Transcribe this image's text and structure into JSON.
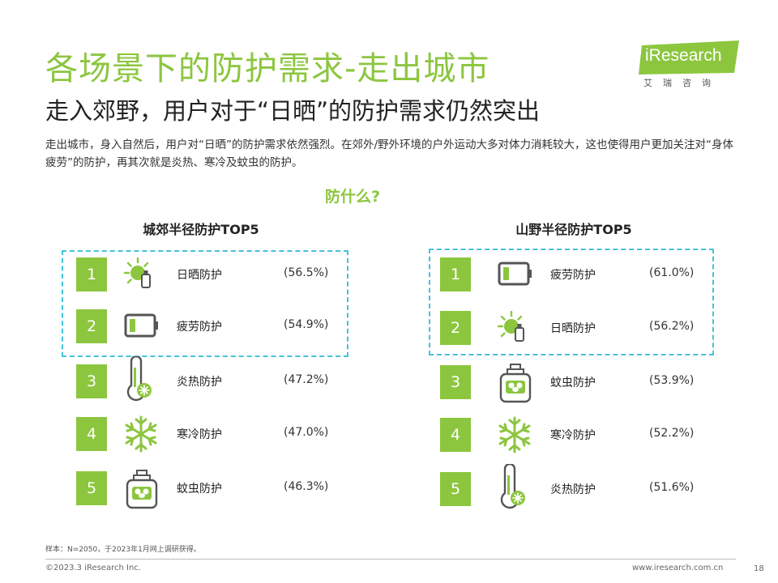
{
  "header": {
    "title": "各场景下的防护需求-走出城市",
    "subtitle": "走入郊野，用户对于“日晒”的防护需求仍然突出",
    "description": "走出城市，身入自然后，用户对“日晒”的防护需求依然强烈。在郊外/野外环境的户外运动大多对体力消耗较大，这也使得用户更加关注对“身体疲劳”的防护，再其次就是炎热、寒冷及蚊虫的防护。"
  },
  "logo": {
    "text": "iResearch",
    "cn": "艾瑞咨询",
    "color": "#8cc63f"
  },
  "question": "防什么?",
  "accent_color": "#8cc63f",
  "highlight_color": "#45c3d8",
  "left_panel": {
    "title": "城郊半径防护TOP5",
    "items": [
      {
        "rank": "1",
        "icon": "sun-bottle-icon",
        "label": "日晒防护",
        "value": "(56.5%)"
      },
      {
        "rank": "2",
        "icon": "battery-low-icon",
        "label": "疲劳防护",
        "value": "(54.9%)"
      },
      {
        "rank": "3",
        "icon": "thermometer-icon",
        "label": "炎热防护",
        "value": "(47.2%)"
      },
      {
        "rank": "4",
        "icon": "snowflake-icon",
        "label": "寒冷防护",
        "value": "(47.0%)"
      },
      {
        "rank": "5",
        "icon": "bug-spray-icon",
        "label": "蚊虫防护",
        "value": "(46.3%)"
      }
    ]
  },
  "right_panel": {
    "title": "山野半径防护TOP5",
    "items": [
      {
        "rank": "1",
        "icon": "battery-low-icon",
        "label": "疲劳防护",
        "value": "(61.0%)"
      },
      {
        "rank": "2",
        "icon": "sun-bottle-icon",
        "label": "日晒防护",
        "value": "(56.2%)"
      },
      {
        "rank": "3",
        "icon": "bug-spray-icon",
        "label": "蚊虫防护",
        "value": "(53.9%)"
      },
      {
        "rank": "4",
        "icon": "snowflake-icon",
        "label": "寒冷防护",
        "value": "(52.2%)"
      },
      {
        "rank": "5",
        "icon": "thermometer-icon",
        "label": "炎热防护",
        "value": "(51.6%)"
      }
    ]
  },
  "footer": {
    "note": "样本：N=2050，于2023年1月网上调研获得。",
    "copyright": "©2023.3 iResearch Inc.",
    "website": "www.iresearch.com.cn",
    "page": "18"
  }
}
